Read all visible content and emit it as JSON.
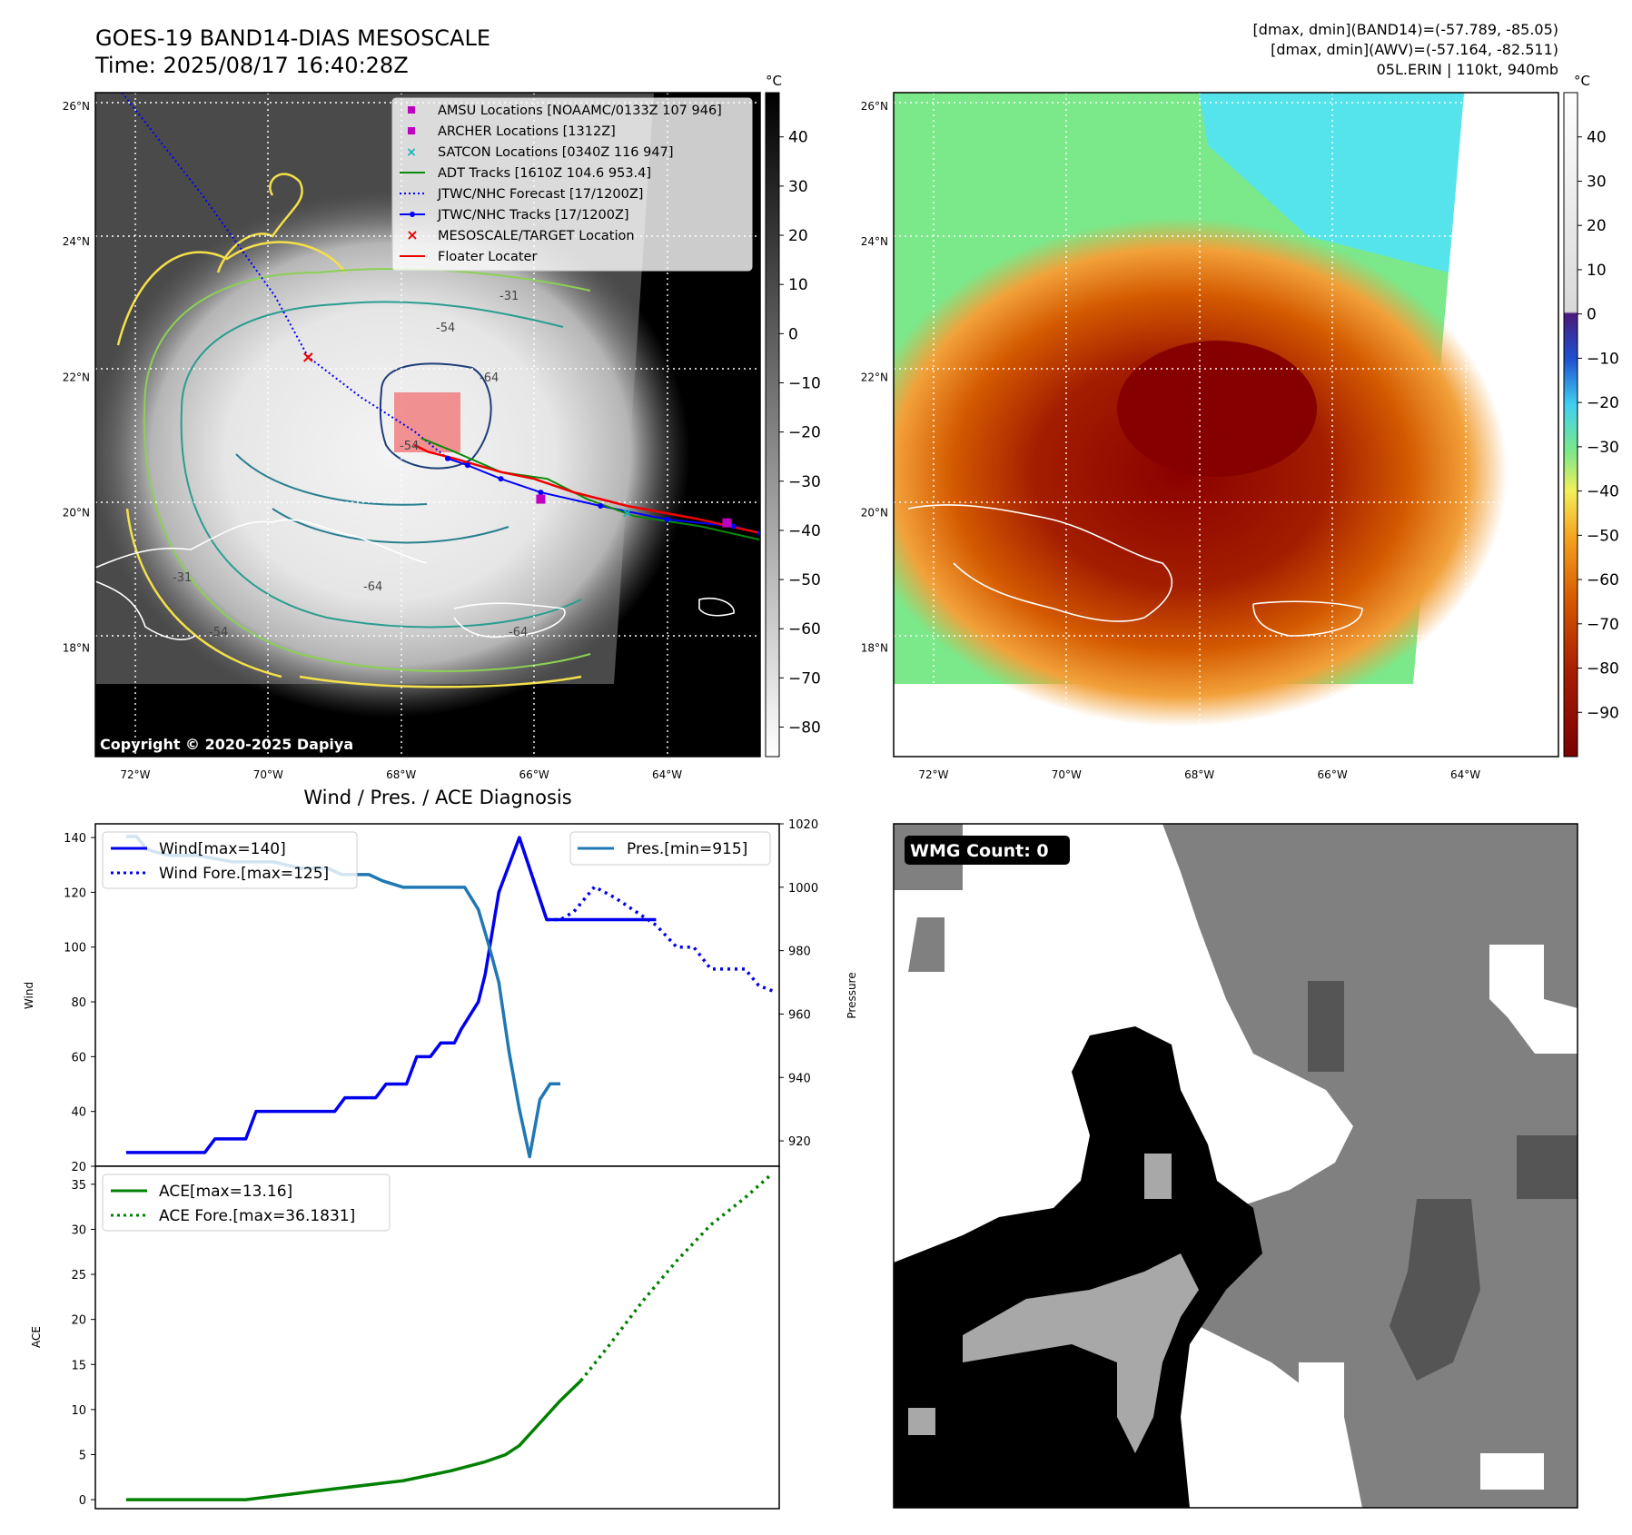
{
  "header": {
    "title_line1": "GOES-19 BAND14-DIAS MESOSCALE",
    "title_line2": "Time: 2025/08/17 16:40:28Z",
    "stats_line1": "[dmax, dmin](BAND14)=(-57.789, -85.05)",
    "stats_line2": "[dmax, dmin](AWV)=(-57.164, -82.511)",
    "stats_line3": "05L.ERIN | 110kt, 940mb"
  },
  "map_axes": {
    "lat_labels": [
      "26°N",
      "24°N",
      "22°N",
      "20°N",
      "18°N"
    ],
    "lat_values": [
      26,
      24,
      22,
      20,
      18
    ],
    "lon_labels": [
      "72°W",
      "70°W",
      "68°W",
      "66°W",
      "64°W"
    ],
    "lon_values": [
      -72,
      -70,
      -68,
      -66,
      -64
    ],
    "lon_range": [
      -72.6,
      -62.6
    ],
    "lat_range": [
      16.4,
      26.2
    ]
  },
  "legend": {
    "amsu": "AMSU Locations [NOAAMC/0133Z 107 946]",
    "archer": "ARCHER Locations [1312Z]",
    "satcon": "SATCON Locations [0340Z 116 947]",
    "adt": "ADT Tracks [1610Z 104.6 953.4]",
    "forecast": "JTWC/NHC Forecast [17/1200Z]",
    "tracks": "JTWC/NHC Tracks [17/1200Z]",
    "target": "MESOSCALE/TARGET Location",
    "floater": "Floater Locater"
  },
  "contour_labels": [
    "-31",
    "-54",
    "-64",
    "-54",
    "-64",
    "-31",
    "-54",
    "-64"
  ],
  "copyright": "Copyright © 2020-2025 Dapiya",
  "colorbar_gray": {
    "unit": "°C",
    "ticks": [
      "40",
      "30",
      "20",
      "10",
      "0",
      "−10",
      "−20",
      "−30",
      "−40",
      "−50",
      "−60",
      "−70",
      "−80"
    ],
    "tick_values": [
      40,
      30,
      20,
      10,
      0,
      -10,
      -20,
      -30,
      -40,
      -50,
      -60,
      -70,
      -80
    ],
    "range": [
      -86,
      49
    ]
  },
  "colorbar_color": {
    "unit": "°C",
    "ticks": [
      "40",
      "30",
      "20",
      "10",
      "0",
      "−10",
      "−20",
      "−30",
      "−40",
      "−50",
      "−60",
      "−70",
      "−80",
      "−90"
    ],
    "tick_values": [
      40,
      30,
      20,
      10,
      0,
      -10,
      -20,
      -30,
      -40,
      -50,
      -60,
      -70,
      -80,
      -90
    ],
    "range": [
      -100,
      50
    ]
  },
  "storm_track": {
    "forecast": [
      [
        -72.2,
        26.2
      ],
      [
        -71.0,
        24.7
      ],
      [
        -69.9,
        23.2
      ],
      [
        -69.4,
        22.3
      ],
      [
        -68.6,
        21.7
      ],
      [
        -67.8,
        21.2
      ],
      [
        -67.3,
        20.8
      ]
    ],
    "best": [
      [
        -67.3,
        20.8
      ],
      [
        -67.0,
        20.7
      ],
      [
        -66.5,
        20.5
      ],
      [
        -65.9,
        20.3
      ],
      [
        -65.0,
        20.1
      ],
      [
        -64.0,
        19.9
      ],
      [
        -63.0,
        19.8
      ],
      [
        -62.6,
        19.7
      ]
    ],
    "adt": [
      [
        -67.7,
        21.1
      ],
      [
        -67.2,
        20.9
      ],
      [
        -66.5,
        20.6
      ],
      [
        -65.8,
        20.5
      ],
      [
        -65.2,
        20.2
      ],
      [
        -64.5,
        19.95
      ],
      [
        -63.5,
        19.8
      ],
      [
        -62.6,
        19.6
      ]
    ],
    "floater": [
      [
        -67.8,
        21.0
      ],
      [
        -67.6,
        20.9
      ],
      [
        -67.2,
        20.8
      ],
      [
        -66.5,
        20.6
      ],
      [
        -66.0,
        20.5
      ],
      [
        -65.4,
        20.3
      ],
      [
        -64.6,
        20.1
      ],
      [
        -63.5,
        19.9
      ],
      [
        -62.6,
        19.7
      ]
    ],
    "target": [
      -69.4,
      22.3
    ],
    "amsu": [
      -65.9,
      20.2
    ],
    "archer": [
      -63.1,
      19.85
    ],
    "satcon": [
      -64.6,
      20.0
    ],
    "floater_box": [
      [
        -68.1,
        21.6
      ],
      [
        -67.1,
        20.7
      ]
    ]
  },
  "chart_data": [
    {
      "type": "line",
      "title": "Wind / Pres. / ACE Diagnosis",
      "ylabel": "Wind",
      "y2label": "Pressure",
      "ylim": [
        20,
        145
      ],
      "y2lim": [
        912,
        1020
      ],
      "xlim": [
        0,
        100
      ],
      "yticks": [
        20,
        40,
        60,
        80,
        100,
        120,
        140
      ],
      "y2ticks": [
        920,
        940,
        960,
        980,
        1000,
        1020
      ],
      "legend_wind": "Wind[max=140]",
      "legend_wind_fore": "Wind Fore.[max=125]",
      "legend_pres": "Pres.[min=915]",
      "series": [
        {
          "name": "Wind",
          "color": "#0000ee",
          "style": "solid",
          "axis": "left",
          "x": [
            4.5,
            16,
            17.5,
            22,
            23.5,
            35,
            36.5,
            41,
            42.5,
            45.5,
            47,
            49,
            50.5,
            52.5,
            53.5,
            56,
            57,
            58,
            59,
            60.5,
            62,
            64,
            66,
            68,
            69.5,
            71,
            72,
            73.5,
            75,
            78,
            80,
            82
          ],
          "values": [
            25,
            25,
            30,
            30,
            40,
            40,
            45,
            45,
            50,
            50,
            60,
            60,
            65,
            65,
            70,
            80,
            90,
            105,
            120,
            130,
            140,
            125,
            110,
            110,
            110,
            110,
            110,
            110,
            110,
            110,
            110,
            110
          ]
        },
        {
          "name": "Wind Fore.",
          "color": "#0000ee",
          "style": "dotted",
          "axis": "left",
          "x": [
            62,
            64,
            66,
            68,
            70,
            73,
            76,
            79,
            82,
            85,
            87.5,
            90,
            92,
            95,
            97,
            99
          ],
          "values": [
            140,
            125,
            110,
            110,
            113,
            122,
            118,
            113,
            108,
            100,
            100,
            92,
            92,
            92,
            86,
            84
          ]
        },
        {
          "name": "Pres.",
          "color": "#1f77b4",
          "style": "solid",
          "axis": "right",
          "x": [
            4.5,
            6,
            7.5,
            9,
            11,
            13,
            15,
            20,
            26,
            30,
            32,
            34,
            36,
            38,
            40,
            42,
            43.5,
            45,
            50,
            52,
            54,
            56,
            57.5,
            59,
            60.5,
            62,
            63.5,
            65,
            66.5,
            68
          ],
          "values": [
            1016,
            1016,
            1012,
            1011,
            1010,
            1010,
            1010,
            1008,
            1008,
            1006,
            1006,
            1006,
            1004,
            1004,
            1004,
            1002,
            1001,
            1000,
            1000,
            1000,
            1000,
            993,
            982,
            970,
            948,
            930,
            915,
            933,
            938,
            938
          ]
        }
      ]
    },
    {
      "type": "line",
      "ylabel": "ACE",
      "ylim": [
        -1,
        37
      ],
      "xlim": [
        0,
        100
      ],
      "yticks": [
        0,
        5,
        10,
        15,
        20,
        25,
        30,
        35
      ],
      "legend_ace": "ACE[max=13.16]",
      "legend_ace_fore": "ACE Fore.[max=36.1831]",
      "series": [
        {
          "name": "ACE",
          "color": "#008000",
          "style": "solid",
          "x": [
            4.5,
            22,
            35,
            45,
            52,
            57,
            60,
            62,
            65,
            68,
            71
          ],
          "values": [
            0,
            0,
            1.2,
            2.1,
            3.2,
            4.2,
            5,
            6,
            8.5,
            11,
            13.2
          ]
        },
        {
          "name": "ACE Fore.",
          "color": "#008000",
          "style": "dotted",
          "x": [
            71,
            75,
            80,
            85,
            90,
            95,
            99
          ],
          "values": [
            13.2,
            17,
            22,
            26.5,
            30.5,
            33.5,
            36.2
          ]
        }
      ]
    }
  ],
  "wmg": {
    "label": "WMG Count: 0"
  }
}
